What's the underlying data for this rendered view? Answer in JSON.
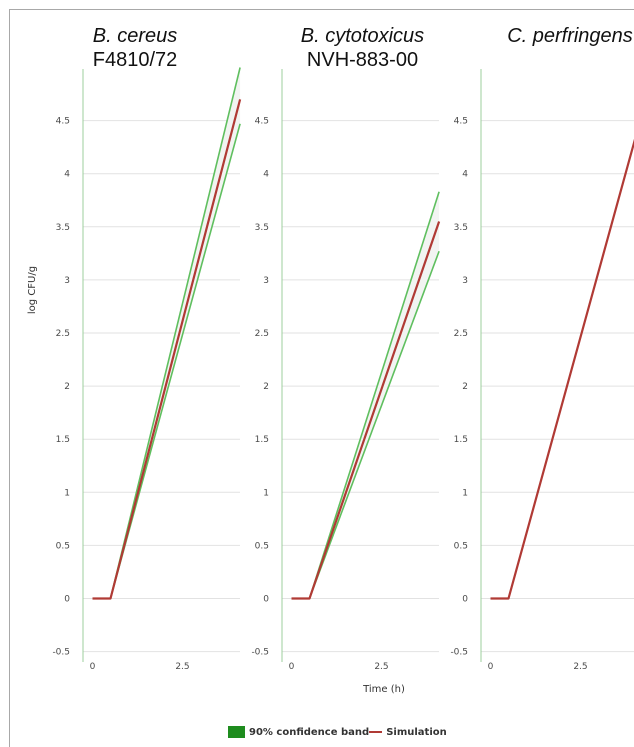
{
  "chart_data": [
    {
      "type": "line",
      "title": "B. cereus",
      "subtitle": "F4810/72",
      "xlabel": "",
      "ylabel": "log CFU/g",
      "xlim": [
        -0.4,
        4.15
      ],
      "ylim": [
        -0.5,
        5.0
      ],
      "xticks": [
        "0",
        "2.5"
      ],
      "yticks": [
        "-0.5",
        "0",
        "0.5",
        "1",
        "1.5",
        "2",
        "2.5",
        "3",
        "3.5",
        "4",
        "4.5"
      ],
      "grid": true,
      "series": [
        {
          "name": "Simulation",
          "x": [
            0,
            0.5,
            4.1
          ],
          "y": [
            0,
            0,
            4.7
          ],
          "color": "#b03a35"
        },
        {
          "name": "90% confidence band",
          "role": "upper",
          "x": [
            0.5,
            4.1
          ],
          "y": [
            0,
            5.0
          ],
          "color": "#5fbf5f"
        },
        {
          "name": "90% confidence band",
          "role": "lower",
          "x": [
            0.5,
            4.1
          ],
          "y": [
            0,
            4.47
          ],
          "color": "#5fbf5f"
        }
      ]
    },
    {
      "type": "line",
      "title": "B. cytotoxicus",
      "subtitle": "NVH-883-00",
      "xlabel": "Time (h)",
      "ylabel": "",
      "xlim": [
        -0.4,
        4.15
      ],
      "ylim": [
        -0.5,
        5.0
      ],
      "xticks": [
        "0",
        "2.5"
      ],
      "yticks": [
        "-0.5",
        "0",
        "0.5",
        "1",
        "1.5",
        "2",
        "2.5",
        "3",
        "3.5",
        "4",
        "4.5"
      ],
      "grid": true,
      "series": [
        {
          "name": "Simulation",
          "x": [
            0,
            0.5,
            4.1
          ],
          "y": [
            0,
            0,
            3.55
          ],
          "color": "#b03a35"
        },
        {
          "name": "90% confidence band",
          "role": "upper",
          "x": [
            0.5,
            4.1
          ],
          "y": [
            0,
            3.83
          ],
          "color": "#5fbf5f"
        },
        {
          "name": "90% confidence band",
          "role": "lower",
          "x": [
            0.5,
            4.1
          ],
          "y": [
            0,
            3.27
          ],
          "color": "#5fbf5f"
        }
      ]
    },
    {
      "type": "line",
      "title": "C. perfringens",
      "subtitle": "",
      "xlabel": "",
      "ylabel": "",
      "xlim": [
        -0.4,
        4.15
      ],
      "ylim": [
        -0.5,
        5.0
      ],
      "xticks": [
        "0",
        "2.5"
      ],
      "yticks": [
        "-0.5",
        "0",
        "0.5",
        "1",
        "1.5",
        "2",
        "2.5",
        "3",
        "3.5",
        "4",
        "4.5"
      ],
      "grid": true,
      "series": [
        {
          "name": "Simulation",
          "x": [
            0,
            0.5,
            4.1
          ],
          "y": [
            0,
            0,
            4.43
          ],
          "color": "#b03a35"
        }
      ]
    }
  ],
  "legend": {
    "placement": "bottom-center",
    "items": [
      {
        "label": "90% confidence band",
        "color": "#1e8c1e"
      },
      {
        "label": "Simulation",
        "color": "#b03a35"
      }
    ]
  },
  "colors": {
    "grid": "#e2e2e2",
    "band_fill": "#f2f4f2",
    "frame": "#a8a8a8"
  }
}
